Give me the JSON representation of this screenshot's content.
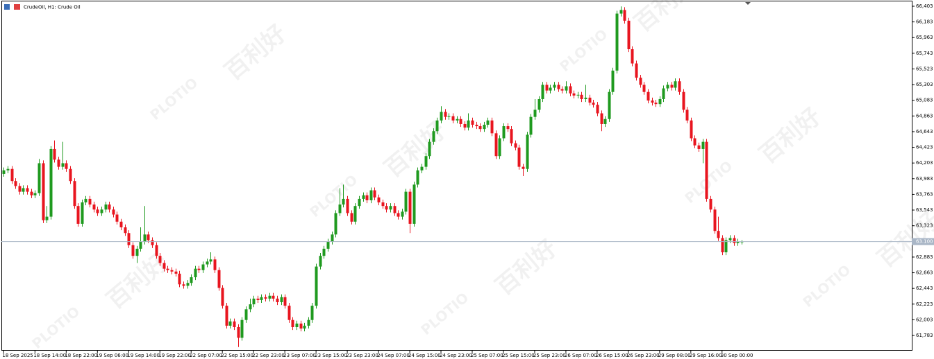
{
  "chart_data": {
    "type": "candlestick",
    "title": "CrudeOil, H1: Crude Oil",
    "watermark": [
      "百利好",
      "PLOTIO"
    ],
    "up_color": "#1f9a1f",
    "down_color": "#e8151f",
    "price_line_color": "#a9b6c6",
    "last_price": {
      "value": 63.1,
      "label": "63.100"
    },
    "ylim": [
      61.579,
      66.471
    ],
    "xlim": [
      -0.6,
      232.6
    ],
    "yticks": [
      {
        "value": 66.403,
        "label": "66,403"
      },
      {
        "value": 66.183,
        "label": "66,183"
      },
      {
        "value": 65.963,
        "label": "65,963"
      },
      {
        "value": 65.743,
        "label": "65,743"
      },
      {
        "value": 65.523,
        "label": "65,523"
      },
      {
        "value": 65.303,
        "label": "65,303"
      },
      {
        "value": 65.083,
        "label": "65,083"
      },
      {
        "value": 64.863,
        "label": "64,863"
      },
      {
        "value": 64.643,
        "label": "64,643"
      },
      {
        "value": 64.423,
        "label": "64,423"
      },
      {
        "value": 64.203,
        "label": "64,203"
      },
      {
        "value": 63.983,
        "label": "63,983"
      },
      {
        "value": 63.763,
        "label": "63,763"
      },
      {
        "value": 63.543,
        "label": "63,543"
      },
      {
        "value": 63.323,
        "label": "63,323"
      },
      {
        "value": 62.883,
        "label": "62,883"
      },
      {
        "value": 62.663,
        "label": "62,663"
      },
      {
        "value": 62.443,
        "label": "62,443"
      },
      {
        "value": 62.223,
        "label": "62,223"
      },
      {
        "value": 62.003,
        "label": "62,003"
      },
      {
        "value": 61.783,
        "label": "61,783"
      }
    ],
    "xticks": [
      {
        "value": 0,
        "label": "18 Sep 2025"
      },
      {
        "value": 8,
        "label": "18 Sep 14:00"
      },
      {
        "value": 16,
        "label": "18 Sep 22:00"
      },
      {
        "value": 24,
        "label": "19 Sep 06:00"
      },
      {
        "value": 32,
        "label": "19 Sep 14:00"
      },
      {
        "value": 40,
        "label": "19 Sep 22:00"
      },
      {
        "value": 48,
        "label": "22 Sep 07:00"
      },
      {
        "value": 56,
        "label": "22 Sep 15:00"
      },
      {
        "value": 64,
        "label": "22 Sep 23:00"
      },
      {
        "value": 72,
        "label": "23 Sep 07:00"
      },
      {
        "value": 80,
        "label": "23 Sep 15:00"
      },
      {
        "value": 88,
        "label": "23 Sep 23:00"
      },
      {
        "value": 96,
        "label": "24 Sep 07:00"
      },
      {
        "value": 104,
        "label": "24 Sep 15:00"
      },
      {
        "value": 112,
        "label": "24 Sep 23:00"
      },
      {
        "value": 120,
        "label": "25 Sep 07:00"
      },
      {
        "value": 128,
        "label": "25 Sep 15:00"
      },
      {
        "value": 136,
        "label": "25 Sep 23:00"
      },
      {
        "value": 144,
        "label": "26 Sep 07:00"
      },
      {
        "value": 152,
        "label": "26 Sep 15:00"
      },
      {
        "value": 160,
        "label": "26 Sep 23:00"
      },
      {
        "value": 168,
        "label": "29 Sep 08:00"
      },
      {
        "value": 176,
        "label": "29 Sep 16:00"
      },
      {
        "value": 184,
        "label": "30 Sep 00:00"
      }
    ],
    "candles": [
      [
        64.05,
        64.14,
        64.01,
        64.1
      ],
      [
        64.1,
        64.16,
        64.06,
        64.12
      ],
      [
        64.12,
        64.16,
        63.91,
        63.95
      ],
      [
        63.95,
        63.99,
        63.84,
        63.88
      ],
      [
        63.88,
        63.92,
        63.76,
        63.8
      ],
      [
        63.8,
        63.89,
        63.76,
        63.85
      ],
      [
        63.85,
        63.89,
        63.76,
        63.8
      ],
      [
        63.8,
        63.84,
        63.71,
        63.75
      ],
      [
        63.75,
        63.82,
        63.71,
        63.78
      ],
      [
        63.78,
        64.26,
        63.74,
        64.2
      ],
      [
        64.2,
        64.24,
        63.36,
        63.4
      ],
      [
        63.4,
        63.6,
        63.36,
        63.45
      ],
      [
        63.45,
        64.44,
        63.41,
        64.4
      ],
      [
        64.4,
        64.52,
        64.21,
        64.25
      ],
      [
        64.25,
        64.29,
        64.11,
        64.15
      ],
      [
        64.15,
        64.5,
        64.11,
        64.2
      ],
      [
        64.2,
        64.24,
        64.08,
        64.12
      ],
      [
        64.12,
        64.16,
        63.91,
        63.95
      ],
      [
        63.95,
        63.99,
        63.56,
        63.6
      ],
      [
        63.6,
        63.64,
        63.31,
        63.35
      ],
      [
        63.35,
        63.69,
        63.31,
        63.65
      ],
      [
        63.65,
        63.74,
        63.61,
        63.7
      ],
      [
        63.7,
        63.74,
        63.58,
        63.62
      ],
      [
        63.62,
        63.66,
        63.51,
        63.55
      ],
      [
        63.55,
        63.59,
        63.46,
        63.5
      ],
      [
        63.5,
        63.59,
        63.46,
        63.55
      ],
      [
        63.55,
        63.66,
        63.51,
        63.62
      ],
      [
        63.62,
        63.66,
        63.51,
        63.55
      ],
      [
        63.55,
        63.59,
        63.44,
        63.48
      ],
      [
        63.48,
        63.52,
        63.34,
        63.38
      ],
      [
        63.38,
        63.42,
        63.26,
        63.3
      ],
      [
        63.3,
        63.34,
        63.18,
        63.22
      ],
      [
        63.22,
        63.26,
        63.01,
        63.05
      ],
      [
        63.05,
        63.09,
        62.86,
        62.9
      ],
      [
        62.9,
        63.04,
        62.8,
        63.0
      ],
      [
        63.0,
        63.3,
        62.96,
        63.1
      ],
      [
        63.1,
        63.6,
        63.06,
        63.2
      ],
      [
        63.2,
        63.24,
        63.08,
        63.12
      ],
      [
        63.12,
        63.16,
        63.01,
        63.05
      ],
      [
        63.05,
        63.09,
        62.86,
        62.9
      ],
      [
        62.9,
        62.94,
        62.76,
        62.8
      ],
      [
        62.8,
        62.84,
        62.68,
        62.72
      ],
      [
        62.72,
        62.76,
        62.66,
        62.7
      ],
      [
        62.7,
        62.74,
        62.64,
        62.68
      ],
      [
        62.68,
        62.72,
        62.61,
        62.65
      ],
      [
        62.65,
        62.69,
        62.46,
        62.5
      ],
      [
        62.5,
        62.54,
        62.44,
        62.48
      ],
      [
        62.48,
        62.56,
        62.44,
        62.52
      ],
      [
        62.52,
        62.64,
        62.48,
        62.6
      ],
      [
        62.6,
        62.76,
        62.56,
        62.72
      ],
      [
        62.72,
        62.76,
        62.66,
        62.7
      ],
      [
        62.7,
        62.82,
        62.66,
        62.78
      ],
      [
        62.78,
        62.86,
        62.74,
        62.82
      ],
      [
        62.82,
        62.95,
        62.78,
        62.85
      ],
      [
        62.85,
        62.89,
        62.66,
        62.7
      ],
      [
        62.7,
        62.74,
        62.41,
        62.45
      ],
      [
        62.45,
        62.49,
        62.16,
        62.2
      ],
      [
        62.2,
        62.24,
        61.88,
        61.92
      ],
      [
        61.92,
        62.02,
        61.88,
        61.98
      ],
      [
        61.98,
        62.02,
        61.86,
        61.9
      ],
      [
        61.9,
        61.94,
        61.62,
        61.75
      ],
      [
        61.75,
        62.04,
        61.71,
        62.0
      ],
      [
        62.0,
        62.19,
        61.96,
        62.15
      ],
      [
        62.15,
        62.3,
        62.11,
        62.22
      ],
      [
        62.22,
        62.34,
        62.18,
        62.3
      ],
      [
        62.3,
        62.34,
        62.24,
        62.28
      ],
      [
        62.28,
        62.36,
        62.24,
        62.32
      ],
      [
        62.32,
        62.36,
        62.26,
        62.3
      ],
      [
        62.3,
        62.38,
        62.26,
        62.34
      ],
      [
        62.34,
        62.38,
        62.26,
        62.3
      ],
      [
        62.3,
        62.34,
        62.21,
        62.25
      ],
      [
        62.25,
        62.36,
        62.21,
        62.32
      ],
      [
        62.32,
        62.36,
        62.16,
        62.2
      ],
      [
        62.2,
        62.24,
        61.96,
        62.0
      ],
      [
        62.0,
        62.04,
        61.86,
        61.9
      ],
      [
        61.9,
        61.99,
        61.86,
        61.95
      ],
      [
        61.95,
        61.99,
        61.84,
        61.88
      ],
      [
        61.88,
        61.96,
        61.84,
        61.92
      ],
      [
        61.92,
        62.04,
        61.88,
        62.0
      ],
      [
        62.0,
        62.24,
        61.96,
        62.2
      ],
      [
        62.2,
        62.79,
        62.16,
        62.75
      ],
      [
        62.75,
        62.94,
        62.71,
        62.9
      ],
      [
        62.9,
        63.04,
        62.86,
        63.0
      ],
      [
        63.0,
        63.14,
        62.96,
        63.1
      ],
      [
        63.1,
        63.24,
        63.06,
        63.2
      ],
      [
        63.2,
        63.54,
        63.16,
        63.5
      ],
      [
        63.5,
        63.85,
        63.46,
        63.62
      ],
      [
        63.62,
        63.9,
        63.58,
        63.7
      ],
      [
        63.7,
        63.74,
        63.46,
        63.5
      ],
      [
        63.5,
        63.54,
        63.34,
        63.38
      ],
      [
        63.38,
        63.64,
        63.34,
        63.6
      ],
      [
        63.6,
        63.74,
        63.56,
        63.7
      ],
      [
        63.7,
        63.79,
        63.66,
        63.75
      ],
      [
        63.75,
        63.79,
        63.64,
        63.68
      ],
      [
        63.68,
        63.86,
        63.64,
        63.82
      ],
      [
        63.82,
        63.86,
        63.68,
        63.72
      ],
      [
        63.72,
        63.76,
        63.61,
        63.65
      ],
      [
        63.65,
        63.69,
        63.56,
        63.6
      ],
      [
        63.6,
        63.64,
        63.51,
        63.55
      ],
      [
        63.55,
        63.64,
        63.51,
        63.6
      ],
      [
        63.6,
        63.64,
        63.46,
        63.5
      ],
      [
        63.5,
        63.54,
        63.41,
        63.45
      ],
      [
        63.45,
        63.56,
        63.41,
        63.52
      ],
      [
        63.52,
        63.84,
        63.48,
        63.8
      ],
      [
        63.8,
        63.84,
        63.22,
        63.35
      ],
      [
        63.35,
        63.94,
        63.31,
        63.9
      ],
      [
        63.9,
        64.14,
        63.86,
        64.1
      ],
      [
        64.1,
        64.19,
        64.06,
        64.15
      ],
      [
        64.15,
        64.34,
        64.11,
        64.3
      ],
      [
        64.3,
        64.54,
        64.26,
        64.5
      ],
      [
        64.5,
        64.69,
        64.46,
        64.65
      ],
      [
        64.65,
        64.84,
        64.61,
        64.8
      ],
      [
        64.8,
        65.0,
        64.76,
        64.92
      ],
      [
        64.92,
        64.96,
        64.81,
        64.85
      ],
      [
        64.85,
        64.9,
        64.81,
        64.86
      ],
      [
        64.86,
        64.9,
        64.76,
        64.8
      ],
      [
        64.8,
        64.86,
        64.76,
        64.82
      ],
      [
        64.82,
        64.86,
        64.71,
        64.75
      ],
      [
        64.75,
        64.79,
        64.66,
        64.7
      ],
      [
        64.7,
        64.9,
        64.66,
        64.8
      ],
      [
        64.8,
        64.84,
        64.7,
        64.74
      ],
      [
        64.74,
        64.78,
        64.68,
        64.72
      ],
      [
        64.72,
        64.76,
        64.64,
        64.68
      ],
      [
        64.68,
        64.78,
        64.64,
        64.74
      ],
      [
        64.74,
        64.84,
        64.7,
        64.8
      ],
      [
        64.8,
        64.84,
        64.58,
        64.62
      ],
      [
        64.62,
        64.66,
        64.26,
        64.3
      ],
      [
        64.3,
        64.59,
        64.26,
        64.55
      ],
      [
        64.55,
        64.76,
        64.51,
        64.72
      ],
      [
        64.72,
        64.76,
        64.64,
        64.68
      ],
      [
        64.68,
        64.72,
        64.44,
        64.48
      ],
      [
        64.48,
        64.52,
        64.38,
        64.42
      ],
      [
        64.42,
        64.46,
        64.11,
        64.15
      ],
      [
        64.15,
        64.19,
        64.02,
        64.12
      ],
      [
        64.12,
        64.64,
        64.08,
        64.6
      ],
      [
        64.6,
        64.89,
        64.56,
        64.85
      ],
      [
        64.85,
        65.1,
        64.81,
        64.95
      ],
      [
        64.95,
        65.14,
        64.91,
        65.1
      ],
      [
        65.1,
        65.34,
        65.06,
        65.3
      ],
      [
        65.3,
        65.34,
        65.18,
        65.22
      ],
      [
        65.22,
        65.3,
        65.18,
        65.26
      ],
      [
        65.26,
        65.34,
        65.22,
        65.3
      ],
      [
        65.3,
        65.34,
        65.2,
        65.24
      ],
      [
        65.24,
        65.28,
        65.18,
        65.22
      ],
      [
        65.22,
        65.35,
        65.18,
        65.28
      ],
      [
        65.28,
        65.32,
        65.14,
        65.18
      ],
      [
        65.18,
        65.22,
        65.11,
        65.15
      ],
      [
        65.15,
        65.2,
        65.11,
        65.16
      ],
      [
        65.16,
        65.2,
        65.06,
        65.1
      ],
      [
        65.1,
        65.3,
        65.06,
        65.12
      ],
      [
        65.12,
        65.16,
        65.01,
        65.05
      ],
      [
        65.05,
        65.09,
        64.98,
        65.02
      ],
      [
        65.02,
        65.06,
        64.86,
        64.9
      ],
      [
        64.9,
        64.94,
        64.65,
        64.75
      ],
      [
        64.75,
        64.86,
        64.71,
        64.82
      ],
      [
        64.82,
        65.24,
        64.78,
        65.2
      ],
      [
        65.2,
        65.54,
        65.16,
        65.5
      ],
      [
        65.5,
        66.34,
        65.46,
        66.3
      ],
      [
        66.3,
        66.4,
        66.26,
        66.35
      ],
      [
        66.35,
        66.39,
        66.16,
        66.2
      ],
      [
        66.2,
        66.24,
        65.76,
        65.8
      ],
      [
        65.8,
        65.84,
        65.56,
        65.6
      ],
      [
        65.6,
        65.64,
        65.36,
        65.4
      ],
      [
        65.4,
        65.44,
        65.26,
        65.3
      ],
      [
        65.3,
        65.34,
        65.16,
        65.2
      ],
      [
        65.2,
        65.24,
        65.04,
        65.08
      ],
      [
        65.08,
        65.12,
        65.01,
        65.05
      ],
      [
        65.05,
        65.09,
        64.99,
        65.03
      ],
      [
        65.03,
        65.14,
        64.99,
        65.1
      ],
      [
        65.1,
        65.29,
        65.06,
        65.25
      ],
      [
        65.25,
        65.34,
        65.21,
        65.3
      ],
      [
        65.3,
        65.34,
        65.22,
        65.26
      ],
      [
        65.26,
        65.39,
        65.22,
        65.35
      ],
      [
        65.35,
        65.39,
        65.16,
        65.2
      ],
      [
        65.2,
        65.24,
        64.91,
        64.95
      ],
      [
        64.95,
        64.99,
        64.76,
        64.8
      ],
      [
        64.8,
        64.84,
        64.51,
        64.55
      ],
      [
        64.55,
        64.59,
        64.41,
        64.45
      ],
      [
        64.45,
        64.49,
        64.36,
        64.4
      ],
      [
        64.4,
        64.54,
        64.2,
        64.5
      ],
      [
        64.5,
        64.54,
        63.66,
        63.7
      ],
      [
        63.7,
        63.74,
        63.51,
        63.55
      ],
      [
        63.55,
        63.59,
        63.21,
        63.25
      ],
      [
        63.25,
        63.45,
        63.11,
        63.15
      ],
      [
        63.15,
        63.19,
        62.91,
        62.95
      ],
      [
        62.95,
        63.16,
        62.91,
        63.12
      ],
      [
        63.12,
        63.19,
        63.08,
        63.15
      ],
      [
        63.15,
        63.19,
        63.04,
        63.08
      ],
      [
        63.08,
        63.14,
        63.04,
        63.1
      ],
      [
        63.1,
        63.12,
        63.06,
        63.1
      ]
    ]
  }
}
